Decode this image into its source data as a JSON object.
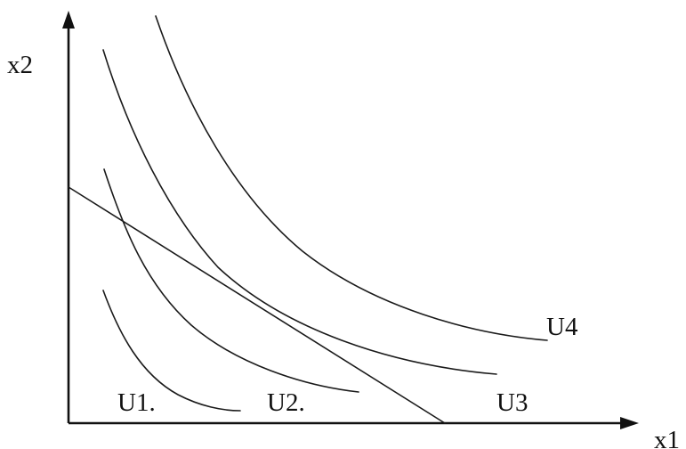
{
  "axes": {
    "x_label": "x1",
    "y_label": "x2"
  },
  "curves": [
    {
      "name": "indifference-curve-u1",
      "label": "U1."
    },
    {
      "name": "indifference-curve-u2",
      "label": "U2."
    },
    {
      "name": "indifference-curve-u3",
      "label": "U3"
    },
    {
      "name": "indifference-curve-u4",
      "label": "U4"
    }
  ],
  "colors": {
    "ink": "#111111",
    "background": "#ffffff"
  }
}
